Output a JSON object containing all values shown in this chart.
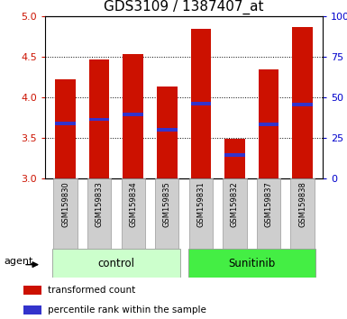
{
  "title": "GDS3109 / 1387407_at",
  "samples": [
    "GSM159830",
    "GSM159833",
    "GSM159834",
    "GSM159835",
    "GSM159831",
    "GSM159832",
    "GSM159837",
    "GSM159838"
  ],
  "bar_heights": [
    4.22,
    4.47,
    4.53,
    4.13,
    4.84,
    3.49,
    4.34,
    4.86
  ],
  "blue_marks": [
    3.68,
    3.73,
    3.79,
    3.6,
    3.92,
    3.29,
    3.67,
    3.91
  ],
  "bar_bottom": 3.0,
  "ylim": [
    3.0,
    5.0
  ],
  "yticks_left": [
    3.0,
    3.5,
    4.0,
    4.5,
    5.0
  ],
  "yticks_right": [
    0,
    25,
    50,
    75,
    100
  ],
  "bar_color": "#cc1100",
  "blue_color": "#3333cc",
  "group1_label": "control",
  "group2_label": "Sunitinib",
  "group1_indices": [
    0,
    1,
    2,
    3
  ],
  "group2_indices": [
    4,
    5,
    6,
    7
  ],
  "agent_label": "agent",
  "legend_red": "transformed count",
  "legend_blue": "percentile rank within the sample",
  "tick_label_color_left": "#cc1100",
  "tick_label_color_right": "#0000cc",
  "group1_bg": "#ccffcc",
  "group2_bg": "#44ee44",
  "xticklabel_bg": "#cecece",
  "title_fontsize": 11,
  "bar_width": 0.6
}
